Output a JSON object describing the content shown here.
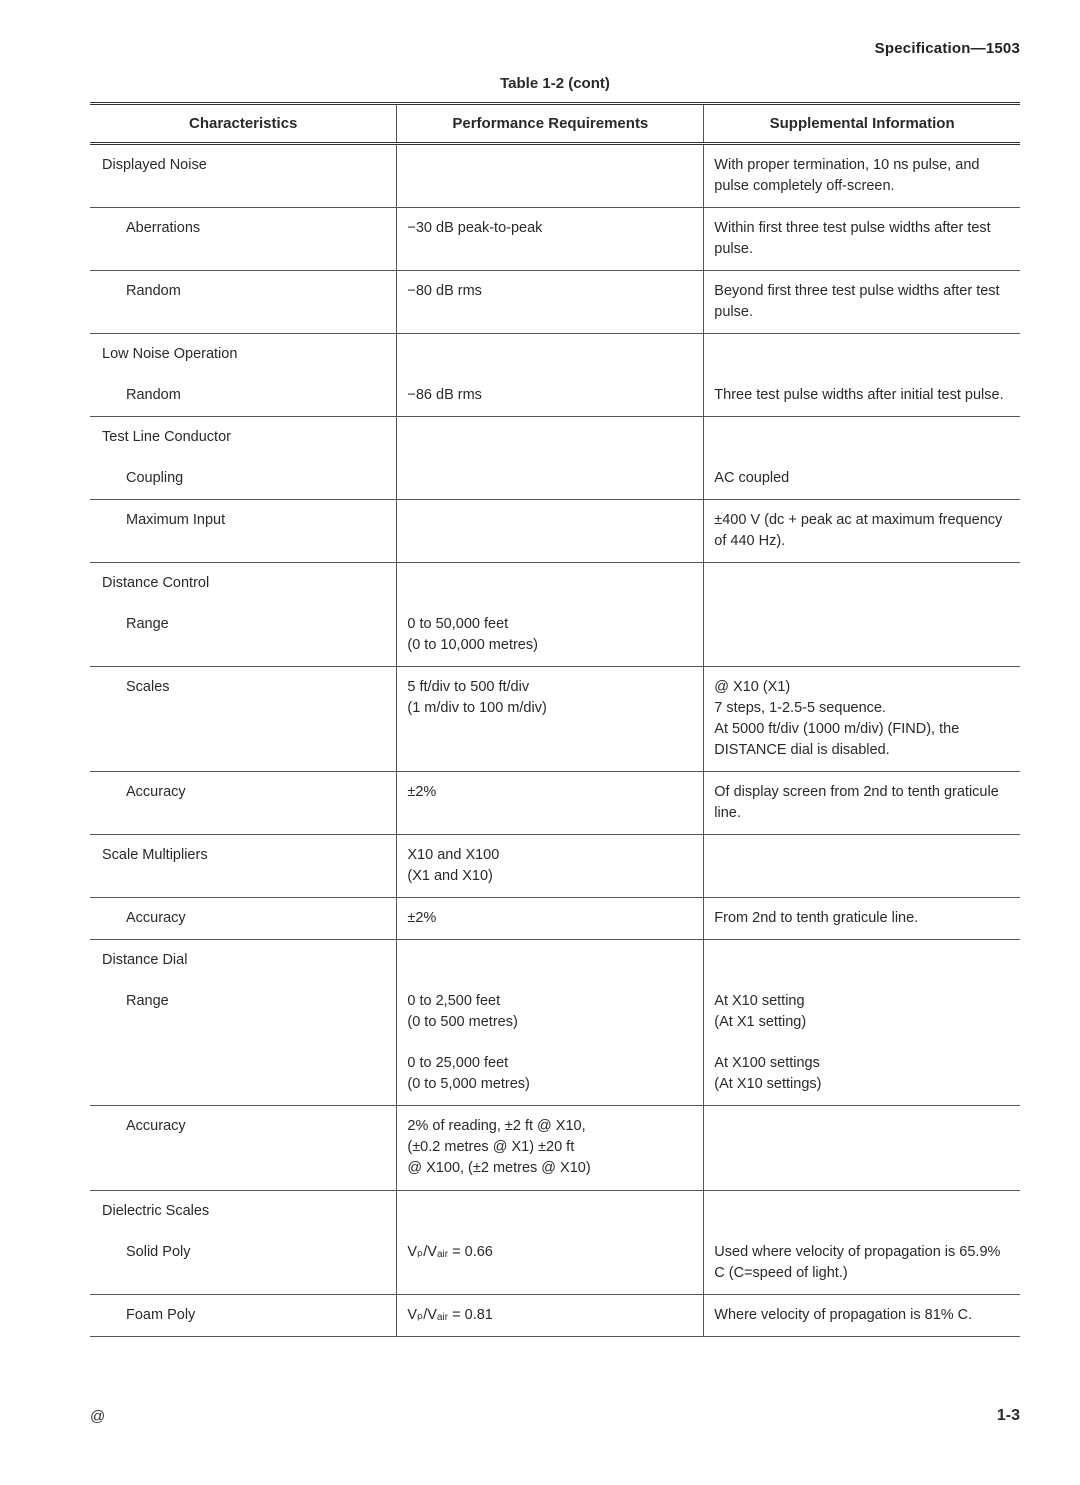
{
  "header": {
    "spec": "Specification—1503"
  },
  "tableTitle": "Table 1-2 (cont)",
  "columns": {
    "c1": "Characteristics",
    "c2": "Performance Requirements",
    "c3": "Supplemental Information"
  },
  "rows": [
    {
      "indent": 0,
      "char": "Displayed Noise",
      "perf": "",
      "supp": "With proper termination, 10 ns pulse, and pulse completely off-screen."
    },
    {
      "indent": 1,
      "char": "Aberrations",
      "perf": "−30 dB peak-to-peak",
      "supp": "Within first three test pulse widths after test pulse."
    },
    {
      "indent": 1,
      "char": "Random",
      "perf": "−80 dB rms",
      "supp": "Beyond first three test pulse widths after test pulse."
    },
    {
      "indent": 0,
      "char": "Low Noise Operation",
      "perf": "",
      "supp": ""
    },
    {
      "noBorderTop": true,
      "indent": 1,
      "char": "Random",
      "perf": "−86 dB rms",
      "supp": "Three test pulse widths after initial test pulse."
    },
    {
      "indent": 0,
      "char": "Test Line Conductor",
      "perf": "",
      "supp": ""
    },
    {
      "noBorderTop": true,
      "indent": 1,
      "char": "Coupling",
      "perf": "",
      "supp": "AC coupled"
    },
    {
      "indent": 1,
      "char": "Maximum Input",
      "perf": "",
      "supp": "±400 V (dc + peak ac at maximum frequency of 440 Hz)."
    },
    {
      "indent": 0,
      "char": "Distance Control",
      "perf": "",
      "supp": ""
    },
    {
      "noBorderTop": true,
      "indent": 1,
      "char": "Range",
      "perf": "0 to 50,000 feet\n(0 to 10,000 metres)",
      "supp": ""
    },
    {
      "indent": 1,
      "char": "Scales",
      "perf": "5 ft/div to 500 ft/div\n(1 m/div to 100 m/div)",
      "supp": "@ X10 (X1)\n7 steps, 1-2.5-5 sequence.\nAt 5000 ft/div (1000 m/div) (FIND), the DISTANCE dial is disabled."
    },
    {
      "indent": 1,
      "char": "Accuracy",
      "perf": "±2%",
      "supp": "Of display screen from 2nd to tenth graticule line."
    },
    {
      "indent": 0,
      "char": "Scale Multipliers",
      "perf": "X10 and X100\n(X1 and X10)",
      "supp": ""
    },
    {
      "indent": 1,
      "char": "Accuracy",
      "perf": "±2%",
      "supp": "From 2nd to tenth graticule line."
    },
    {
      "indent": 0,
      "char": "Distance Dial",
      "perf": "",
      "supp": ""
    },
    {
      "noBorderTop": true,
      "indent": 1,
      "char": "Range",
      "perf": "0 to 2,500 feet\n(0 to 500 metres)",
      "supp": "At X10 setting\n(At X1 setting)"
    },
    {
      "noBorderTop": true,
      "indent": 1,
      "char": "",
      "perf": "0 to 25,000 feet\n(0 to 5,000 metres)",
      "supp": "At X100 settings\n(At X10 settings)"
    },
    {
      "indent": 1,
      "char": "Accuracy",
      "perf": "2% of reading, ±2 ft @ X10,\n(±0.2 metres @ X1) ±20 ft\n@ X100, (±2 metres @ X10)",
      "supp": ""
    },
    {
      "indent": 0,
      "char": "Dielectric Scales",
      "perf": "",
      "supp": ""
    },
    {
      "noBorderTop": true,
      "indent": 1,
      "char": "Solid Poly",
      "perf": "Vₚ/Vₐᵢᵣ = 0.66",
      "supp": "Used where velocity of propagation is 65.9% C (C=speed of light.)"
    },
    {
      "indent": 1,
      "char": "Foam Poly",
      "perf": "Vₚ/Vₐᵢᵣ = 0.81",
      "supp": "Where velocity of propagation is 81% C."
    }
  ],
  "footer": {
    "left": "@",
    "right": "1-3"
  }
}
